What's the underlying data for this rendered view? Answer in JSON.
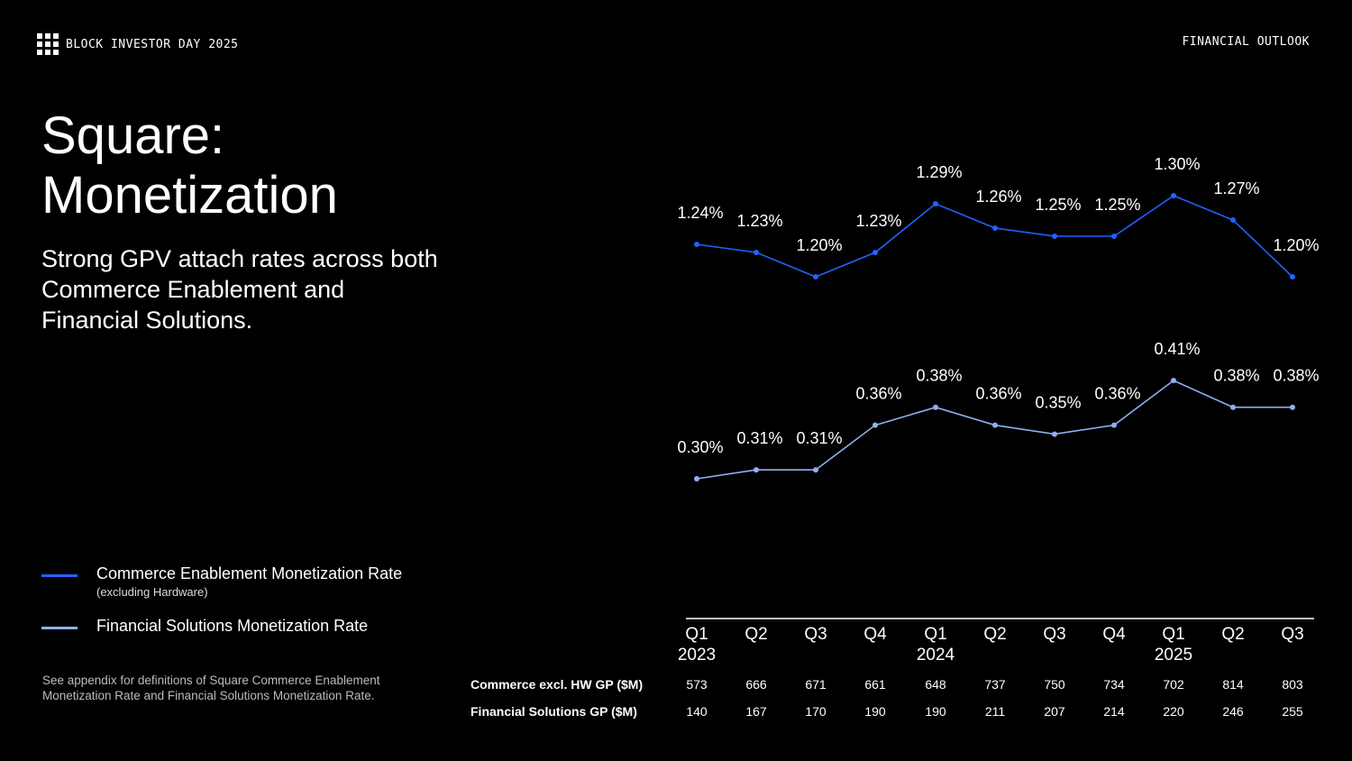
{
  "header": {
    "brand": "BLOCK INVESTOR DAY 2025",
    "section": "FINANCIAL OUTLOOK"
  },
  "title_line1": "Square:",
  "title_line2": "Monetization",
  "subtitle": "Strong GPV attach rates across both Commerce Enablement and Financial Solutions.",
  "legend": {
    "series1_label": "Commerce Enablement Monetization Rate",
    "series1_note": "(excluding Hardware)",
    "series2_label": "Financial Solutions Monetization Rate"
  },
  "footnote": "See appendix for definitions of Square Commerce Enablement Monetization Rate and Financial Solutions Monetization Rate.",
  "colors": {
    "series1": "#1f63ff",
    "series2": "#8fb0f2",
    "background": "#000000",
    "text": "#ffffff"
  },
  "chart_data": {
    "type": "line",
    "title": "",
    "xlabel": "",
    "ylabel": "",
    "categories": [
      "Q1",
      "Q2",
      "Q3",
      "Q4",
      "Q1",
      "Q2",
      "Q3",
      "Q4",
      "Q1",
      "Q2",
      "Q3"
    ],
    "year_labels": [
      "2023",
      "",
      "",
      "",
      "2024",
      "",
      "",
      "",
      "2025",
      "",
      ""
    ],
    "series": [
      {
        "name": "Commerce Enablement Monetization Rate",
        "values": [
          1.24,
          1.23,
          1.2,
          1.23,
          1.29,
          1.26,
          1.25,
          1.25,
          1.3,
          1.27,
          1.2
        ],
        "labels": [
          "1.24%",
          "1.23%",
          "1.20%",
          "1.23%",
          "1.29%",
          "1.26%",
          "1.25%",
          "1.25%",
          "1.30%",
          "1.27%",
          "1.20%"
        ]
      },
      {
        "name": "Financial Solutions Monetization Rate",
        "values": [
          0.3,
          0.31,
          0.31,
          0.36,
          0.38,
          0.36,
          0.35,
          0.36,
          0.41,
          0.38,
          0.38
        ],
        "labels": [
          "0.30%",
          "0.31%",
          "0.31%",
          "0.36%",
          "0.38%",
          "0.36%",
          "0.35%",
          "0.36%",
          "0.41%",
          "0.38%",
          "0.38%"
        ]
      }
    ],
    "table": [
      {
        "label": "Commerce excl. HW GP ($M)",
        "values": [
          "573",
          "666",
          "671",
          "661",
          "648",
          "737",
          "750",
          "734",
          "702",
          "814",
          "803"
        ]
      },
      {
        "label": "Financial Solutions GP ($M)",
        "values": [
          "140",
          "167",
          "170",
          "190",
          "190",
          "211",
          "207",
          "214",
          "220",
          "246",
          "255"
        ]
      }
    ]
  }
}
